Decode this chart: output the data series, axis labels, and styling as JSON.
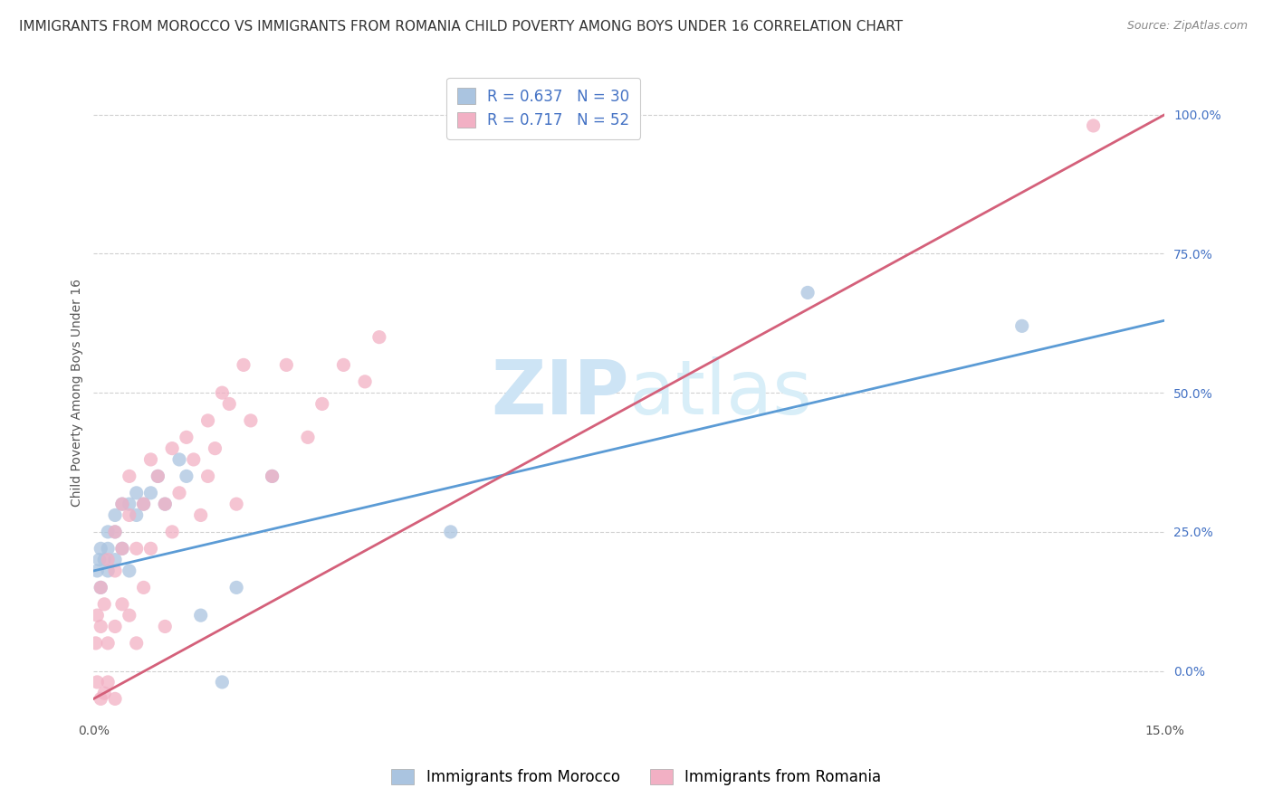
{
  "title": "IMMIGRANTS FROM MOROCCO VS IMMIGRANTS FROM ROMANIA CHILD POVERTY AMONG BOYS UNDER 16 CORRELATION CHART",
  "source": "Source: ZipAtlas.com",
  "ylabel": "Child Poverty Among Boys Under 16",
  "xlim": [
    0.0,
    0.15
  ],
  "ylim": [
    -0.08,
    1.08
  ],
  "yticks": [
    0.0,
    0.25,
    0.5,
    0.75,
    1.0
  ],
  "ytick_labels": [
    "0.0%",
    "25.0%",
    "50.0%",
    "75.0%",
    "100.0%"
  ],
  "xticks": [
    0.0,
    0.15
  ],
  "xtick_labels": [
    "0.0%",
    "15.0%"
  ],
  "morocco_color": "#aac4e0",
  "romania_color": "#f2b0c4",
  "morocco_line_color": "#5b9bd5",
  "romania_line_color": "#d4607a",
  "morocco_R": 0.637,
  "morocco_N": 30,
  "romania_R": 0.717,
  "romania_N": 52,
  "watermark_zip": "ZIP",
  "watermark_atlas": "atlas",
  "watermark_color": "#cde4f5",
  "legend_label_morocco": "Immigrants from Morocco",
  "legend_label_romania": "Immigrants from Romania",
  "bg_color": "#ffffff",
  "grid_color": "#d0d0d0",
  "title_fontsize": 11,
  "axis_label_fontsize": 10,
  "tick_fontsize": 10,
  "legend_fontsize": 12,
  "accent_color": "#4472c4",
  "morocco_scatter_x": [
    0.0005,
    0.0008,
    0.001,
    0.001,
    0.0015,
    0.002,
    0.002,
    0.002,
    0.003,
    0.003,
    0.003,
    0.004,
    0.004,
    0.005,
    0.005,
    0.006,
    0.006,
    0.007,
    0.008,
    0.009,
    0.01,
    0.012,
    0.013,
    0.015,
    0.018,
    0.02,
    0.025,
    0.05,
    0.1,
    0.13
  ],
  "morocco_scatter_y": [
    0.18,
    0.2,
    0.22,
    0.15,
    0.2,
    0.22,
    0.25,
    0.18,
    0.28,
    0.2,
    0.25,
    0.3,
    0.22,
    0.3,
    0.18,
    0.28,
    0.32,
    0.3,
    0.32,
    0.35,
    0.3,
    0.38,
    0.35,
    0.1,
    -0.02,
    0.15,
    0.35,
    0.25,
    0.68,
    0.62
  ],
  "romania_scatter_x": [
    0.0003,
    0.0005,
    0.0005,
    0.001,
    0.001,
    0.001,
    0.0015,
    0.0015,
    0.002,
    0.002,
    0.002,
    0.003,
    0.003,
    0.003,
    0.003,
    0.004,
    0.004,
    0.004,
    0.005,
    0.005,
    0.005,
    0.006,
    0.006,
    0.007,
    0.007,
    0.008,
    0.008,
    0.009,
    0.01,
    0.01,
    0.011,
    0.011,
    0.012,
    0.013,
    0.014,
    0.015,
    0.016,
    0.016,
    0.017,
    0.018,
    0.019,
    0.02,
    0.021,
    0.022,
    0.025,
    0.027,
    0.03,
    0.032,
    0.035,
    0.038,
    0.04,
    0.14
  ],
  "romania_scatter_y": [
    0.05,
    -0.02,
    0.1,
    -0.05,
    0.08,
    0.15,
    -0.04,
    0.12,
    0.05,
    0.2,
    -0.02,
    0.08,
    0.18,
    0.25,
    -0.05,
    0.12,
    0.22,
    0.3,
    0.1,
    0.28,
    0.35,
    0.05,
    0.22,
    0.15,
    0.3,
    0.22,
    0.38,
    0.35,
    0.08,
    0.3,
    0.25,
    0.4,
    0.32,
    0.42,
    0.38,
    0.28,
    0.35,
    0.45,
    0.4,
    0.5,
    0.48,
    0.3,
    0.55,
    0.45,
    0.35,
    0.55,
    0.42,
    0.48,
    0.55,
    0.52,
    0.6,
    0.98
  ],
  "morocco_line_x0": 0.0,
  "morocco_line_y0": 0.18,
  "morocco_line_x1": 0.15,
  "morocco_line_y1": 0.63,
  "romania_line_x0": 0.0,
  "romania_line_y0": -0.05,
  "romania_line_x1": 0.15,
  "romania_line_y1": 1.0
}
